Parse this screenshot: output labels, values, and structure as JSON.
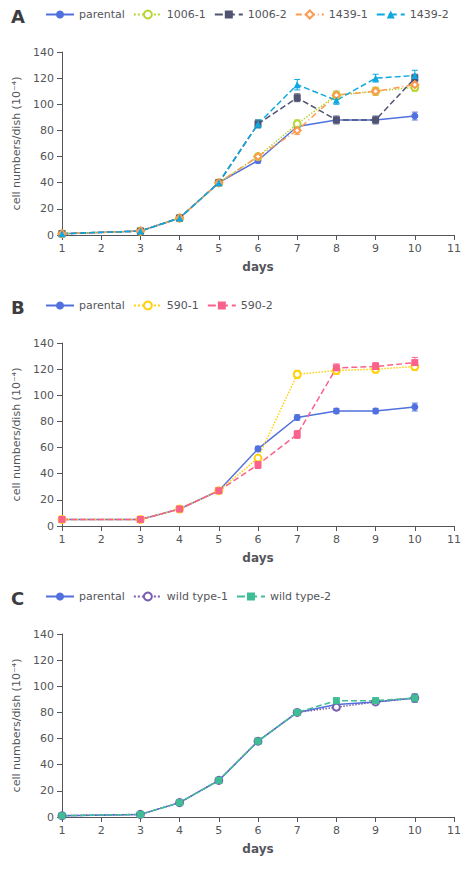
{
  "chart_data": [
    {
      "type": "line",
      "title": "A",
      "xlabel": "days",
      "ylabel": "cell numbers/dish (10⁻⁴)",
      "x": [
        1,
        3,
        4,
        5,
        6,
        7,
        8,
        9,
        10
      ],
      "series": [
        {
          "name": "parental",
          "values": [
            1,
            3,
            13,
            40,
            57,
            83,
            88,
            88,
            91
          ],
          "errors": [
            0.5,
            0.5,
            1,
            2,
            2,
            2,
            2,
            2,
            3
          ],
          "marker": "circle",
          "line_style": "solid"
        },
        {
          "name": "1006-1",
          "values": [
            1,
            3,
            13,
            40,
            60,
            85,
            107,
            110,
            113
          ],
          "errors": [
            0.5,
            0.5,
            1,
            2,
            2,
            3,
            3,
            3,
            3
          ],
          "marker": "emptyCircle",
          "line_style": "dotted"
        },
        {
          "name": "1006-2",
          "values": [
            1,
            3,
            13,
            40,
            85,
            105,
            88,
            88,
            120
          ],
          "errors": [
            0.5,
            0.5,
            1,
            2,
            3,
            3,
            3,
            3,
            3
          ],
          "marker": "rect",
          "line_style": "dashed"
        },
        {
          "name": "1439-1",
          "values": [
            1,
            3,
            13,
            40,
            60,
            80,
            107,
            110,
            115
          ],
          "errors": [
            0.5,
            0.5,
            1,
            2,
            2,
            3,
            3,
            3,
            3
          ],
          "marker": "emptyDiamond",
          "line_style": "dashdot"
        },
        {
          "name": "1439-2",
          "values": [
            1,
            3,
            13,
            40,
            85,
            115,
            103,
            120,
            122
          ],
          "errors": [
            0.5,
            0.5,
            1,
            2,
            3,
            4,
            3,
            3,
            4
          ],
          "marker": "triangle",
          "line_style": "dashed"
        }
      ],
      "xlim": [
        1,
        11
      ],
      "xticks": [
        1,
        2,
        3,
        4,
        5,
        6,
        7,
        8,
        9,
        10,
        11
      ],
      "ylim": [
        0,
        140
      ],
      "yticks": [
        0,
        20,
        40,
        60,
        80,
        100,
        120,
        140
      ],
      "grid": false,
      "legend": "top"
    },
    {
      "type": "line",
      "title": "B",
      "xlabel": "days",
      "ylabel": "cell numbers/dish (10⁻⁴)",
      "x": [
        1,
        3,
        4,
        5,
        6,
        7,
        8,
        9,
        10
      ],
      "series": [
        {
          "name": "parental",
          "values": [
            5,
            5,
            13,
            27,
            59,
            83,
            88,
            88,
            91
          ],
          "errors": [
            0.5,
            0.5,
            1,
            2,
            2,
            2,
            2,
            2,
            3
          ],
          "marker": "circle",
          "line_style": "solid"
        },
        {
          "name": "590-1",
          "values": [
            5,
            5,
            13,
            27,
            52,
            116,
            119,
            120,
            122
          ],
          "errors": [
            0.5,
            0.5,
            1,
            2,
            2,
            3,
            3,
            3,
            3
          ],
          "marker": "emptyCircle",
          "line_style": "dotted"
        },
        {
          "name": "590-2",
          "values": [
            5,
            5,
            13,
            27,
            47,
            70,
            121,
            122,
            125
          ],
          "errors": [
            0.5,
            0.5,
            1,
            2,
            3,
            3,
            3,
            3,
            4
          ],
          "marker": "rect",
          "line_style": "dashed"
        }
      ],
      "xlim": [
        1,
        11
      ],
      "xticks": [
        1,
        2,
        3,
        4,
        5,
        6,
        7,
        8,
        9,
        10,
        11
      ],
      "ylim": [
        0,
        140
      ],
      "yticks": [
        0,
        20,
        40,
        60,
        80,
        100,
        120,
        140
      ],
      "grid": false,
      "legend": "top"
    },
    {
      "type": "line",
      "title": "C",
      "xlabel": "days",
      "ylabel": "cell numbers/dish (10⁻⁴)",
      "x": [
        1,
        3,
        4,
        5,
        6,
        7,
        8,
        9,
        10
      ],
      "series": [
        {
          "name": "parental",
          "values": [
            1,
            2,
            11,
            28,
            58,
            80,
            86,
            88,
            91
          ],
          "errors": [
            0.5,
            0.5,
            1,
            2,
            2,
            2,
            2,
            2,
            3
          ],
          "marker": "circle",
          "line_style": "solid"
        },
        {
          "name": "wild type-1",
          "values": [
            1,
            2,
            11,
            28,
            58,
            80,
            84,
            88,
            91
          ],
          "errors": [
            0.5,
            0.5,
            1,
            2,
            2,
            2,
            2,
            2,
            3
          ],
          "marker": "emptyCircle",
          "line_style": "dotted"
        },
        {
          "name": "wild type-2",
          "values": [
            1,
            2,
            11,
            28,
            58,
            80,
            89,
            89,
            91
          ],
          "errors": [
            0.5,
            0.5,
            1,
            2,
            2,
            2,
            2,
            2,
            3
          ],
          "marker": "rect",
          "line_style": "dashed"
        }
      ],
      "xlim": [
        1,
        11
      ],
      "xticks": [
        1,
        2,
        3,
        4,
        5,
        6,
        7,
        8,
        9,
        10,
        11
      ],
      "ylim": [
        0,
        140
      ],
      "yticks": [
        0,
        20,
        40,
        60,
        80,
        100,
        120,
        140
      ],
      "grid": false,
      "legend": "top"
    }
  ]
}
